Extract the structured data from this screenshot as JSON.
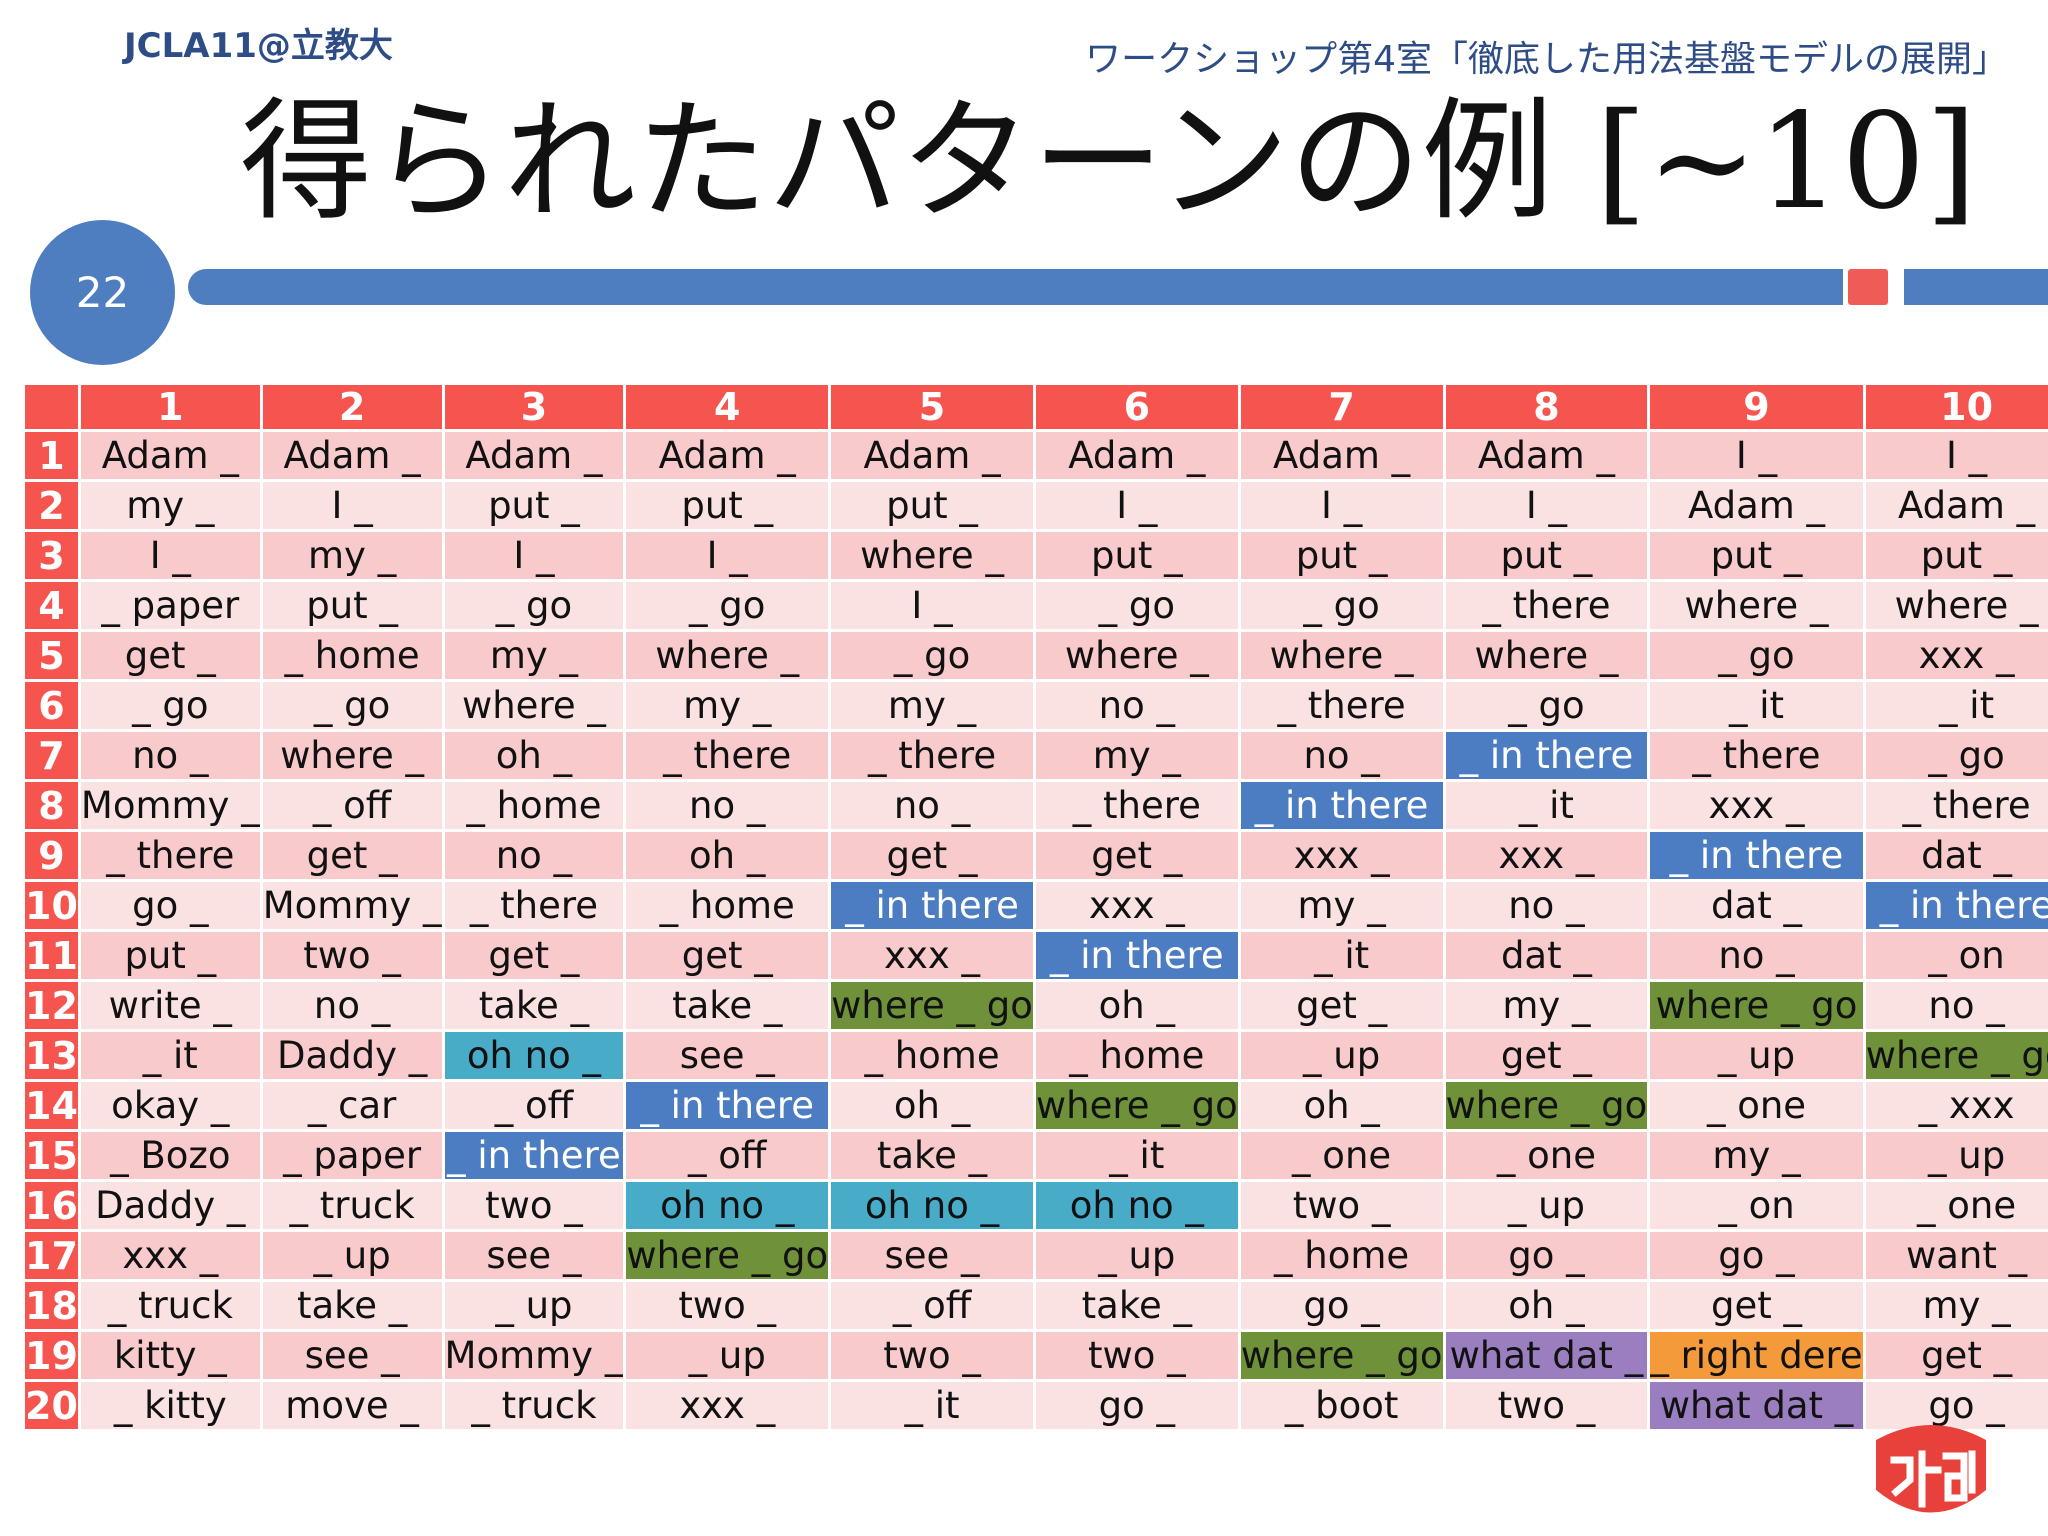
{
  "header": {
    "left": "JCLA11@立教大",
    "right": "ワークショップ第4室「徹底した用法基盤モデルの展開」"
  },
  "title": "得られたパターンの例 [~10]",
  "page_number": "22",
  "colors": {
    "header_red": "#f5544f",
    "row_odd": "#f8cacb",
    "row_even": "#fbe2e2",
    "blue": "#4c7cc1",
    "green": "#6f9139",
    "teal": "#48abc7",
    "orange": "#f59a3a",
    "purple": "#9b7ec0",
    "accent_blue": "#4e7dc0"
  },
  "table": {
    "columns": [
      "1",
      "2",
      "3",
      "4",
      "5",
      "6",
      "7",
      "8",
      "9",
      "10"
    ],
    "rows": [
      {
        "label": "1",
        "cells": [
          {
            "t": "Adam _"
          },
          {
            "t": "Adam _"
          },
          {
            "t": "Adam _"
          },
          {
            "t": "Adam _"
          },
          {
            "t": "Adam _"
          },
          {
            "t": "Adam _"
          },
          {
            "t": "Adam _"
          },
          {
            "t": "Adam _"
          },
          {
            "t": "I _"
          },
          {
            "t": "I _"
          }
        ]
      },
      {
        "label": "2",
        "cells": [
          {
            "t": "my _"
          },
          {
            "t": "I _"
          },
          {
            "t": "put _"
          },
          {
            "t": "put _"
          },
          {
            "t": "put _"
          },
          {
            "t": "I _"
          },
          {
            "t": "I _"
          },
          {
            "t": "I _"
          },
          {
            "t": "Adam _"
          },
          {
            "t": "Adam _"
          }
        ]
      },
      {
        "label": "3",
        "cells": [
          {
            "t": "I _"
          },
          {
            "t": "my _"
          },
          {
            "t": "I _"
          },
          {
            "t": "I _"
          },
          {
            "t": "where _"
          },
          {
            "t": "put _"
          },
          {
            "t": "put _"
          },
          {
            "t": "put _"
          },
          {
            "t": "put _"
          },
          {
            "t": "put _"
          }
        ]
      },
      {
        "label": "4",
        "cells": [
          {
            "t": "_ paper"
          },
          {
            "t": "put _"
          },
          {
            "t": "_ go"
          },
          {
            "t": "_ go"
          },
          {
            "t": "I _"
          },
          {
            "t": "_ go"
          },
          {
            "t": "_ go"
          },
          {
            "t": "_ there"
          },
          {
            "t": "where _"
          },
          {
            "t": "where _"
          }
        ]
      },
      {
        "label": "5",
        "cells": [
          {
            "t": "get _"
          },
          {
            "t": "_ home"
          },
          {
            "t": "my _"
          },
          {
            "t": "where _"
          },
          {
            "t": "_ go"
          },
          {
            "t": "where _"
          },
          {
            "t": "where _"
          },
          {
            "t": "where _"
          },
          {
            "t": "_ go"
          },
          {
            "t": "xxx _"
          }
        ]
      },
      {
        "label": "6",
        "cells": [
          {
            "t": "_ go"
          },
          {
            "t": "_ go"
          },
          {
            "t": "where _"
          },
          {
            "t": "my _"
          },
          {
            "t": "my _"
          },
          {
            "t": "no _"
          },
          {
            "t": "_ there"
          },
          {
            "t": "_ go"
          },
          {
            "t": "_ it"
          },
          {
            "t": "_ it"
          }
        ]
      },
      {
        "label": "7",
        "cells": [
          {
            "t": "no _"
          },
          {
            "t": "where _"
          },
          {
            "t": "oh _"
          },
          {
            "t": "_ there"
          },
          {
            "t": "_ there"
          },
          {
            "t": "my _"
          },
          {
            "t": "no _"
          },
          {
            "t": "_ in there",
            "c": "blue"
          },
          {
            "t": "_ there"
          },
          {
            "t": "_ go"
          }
        ]
      },
      {
        "label": "8",
        "cells": [
          {
            "t": "Mommy _"
          },
          {
            "t": "_ off"
          },
          {
            "t": "_ home"
          },
          {
            "t": "no _"
          },
          {
            "t": "no _"
          },
          {
            "t": "_ there"
          },
          {
            "t": "_ in there",
            "c": "blue"
          },
          {
            "t": "_ it"
          },
          {
            "t": "xxx _"
          },
          {
            "t": "_ there"
          }
        ]
      },
      {
        "label": "9",
        "cells": [
          {
            "t": "_ there"
          },
          {
            "t": "get _"
          },
          {
            "t": "no _"
          },
          {
            "t": "oh _"
          },
          {
            "t": "get _"
          },
          {
            "t": "get _"
          },
          {
            "t": "xxx _"
          },
          {
            "t": "xxx _"
          },
          {
            "t": "_ in there",
            "c": "blue"
          },
          {
            "t": "dat _"
          }
        ]
      },
      {
        "label": "10",
        "cells": [
          {
            "t": "go _"
          },
          {
            "t": "Mommy _"
          },
          {
            "t": "_ there"
          },
          {
            "t": "_ home"
          },
          {
            "t": "_ in there",
            "c": "blue"
          },
          {
            "t": "xxx _"
          },
          {
            "t": "my _"
          },
          {
            "t": "no _"
          },
          {
            "t": "dat _"
          },
          {
            "t": "_ in there",
            "c": "blue"
          }
        ]
      },
      {
        "label": "11",
        "cells": [
          {
            "t": "put _"
          },
          {
            "t": "two _"
          },
          {
            "t": "get _"
          },
          {
            "t": "get _"
          },
          {
            "t": "xxx _"
          },
          {
            "t": "_ in there",
            "c": "blue"
          },
          {
            "t": "_ it"
          },
          {
            "t": "dat _"
          },
          {
            "t": "no _"
          },
          {
            "t": "_ on"
          }
        ]
      },
      {
        "label": "12",
        "cells": [
          {
            "t": "write _"
          },
          {
            "t": "no _"
          },
          {
            "t": "take _"
          },
          {
            "t": "take _"
          },
          {
            "t": "where _ go",
            "c": "green"
          },
          {
            "t": "oh _"
          },
          {
            "t": "get _"
          },
          {
            "t": "my _"
          },
          {
            "t": "where _ go",
            "c": "green"
          },
          {
            "t": "no _"
          }
        ]
      },
      {
        "label": "13",
        "cells": [
          {
            "t": "_ it"
          },
          {
            "t": "Daddy _"
          },
          {
            "t": "oh no _",
            "c": "teal"
          },
          {
            "t": "see _"
          },
          {
            "t": "_ home"
          },
          {
            "t": "_ home"
          },
          {
            "t": "_ up"
          },
          {
            "t": "get _"
          },
          {
            "t": "_ up"
          },
          {
            "t": "where _ go",
            "c": "green"
          }
        ]
      },
      {
        "label": "14",
        "cells": [
          {
            "t": "okay _"
          },
          {
            "t": "_ car"
          },
          {
            "t": "_ off"
          },
          {
            "t": "_ in there",
            "c": "blue"
          },
          {
            "t": "oh _"
          },
          {
            "t": "where _ go",
            "c": "green"
          },
          {
            "t": "oh _"
          },
          {
            "t": "where _ go",
            "c": "green"
          },
          {
            "t": "_ one"
          },
          {
            "t": "_ xxx"
          }
        ]
      },
      {
        "label": "15",
        "cells": [
          {
            "t": "_ Bozo"
          },
          {
            "t": "_ paper"
          },
          {
            "t": "_ in there",
            "c": "blue"
          },
          {
            "t": "_ off"
          },
          {
            "t": "take _"
          },
          {
            "t": "_ it"
          },
          {
            "t": "_ one"
          },
          {
            "t": "_ one"
          },
          {
            "t": "my _"
          },
          {
            "t": "_ up"
          }
        ]
      },
      {
        "label": "16",
        "cells": [
          {
            "t": "Daddy _"
          },
          {
            "t": "_ truck"
          },
          {
            "t": "two _"
          },
          {
            "t": "oh no _",
            "c": "teal"
          },
          {
            "t": "oh no _",
            "c": "teal"
          },
          {
            "t": "oh no _",
            "c": "teal"
          },
          {
            "t": "two _"
          },
          {
            "t": "_ up"
          },
          {
            "t": "_ on"
          },
          {
            "t": "_ one"
          }
        ]
      },
      {
        "label": "17",
        "cells": [
          {
            "t": "xxx _"
          },
          {
            "t": "_ up"
          },
          {
            "t": "see _"
          },
          {
            "t": "where _ go",
            "c": "green"
          },
          {
            "t": "see _"
          },
          {
            "t": "_ up"
          },
          {
            "t": "_ home"
          },
          {
            "t": "go _"
          },
          {
            "t": "go _"
          },
          {
            "t": "want _"
          }
        ]
      },
      {
        "label": "18",
        "cells": [
          {
            "t": "_ truck"
          },
          {
            "t": "take _"
          },
          {
            "t": "_ up"
          },
          {
            "t": "two _"
          },
          {
            "t": "_ off"
          },
          {
            "t": "take _"
          },
          {
            "t": "go _"
          },
          {
            "t": "oh _"
          },
          {
            "t": "get _"
          },
          {
            "t": "my _"
          }
        ]
      },
      {
        "label": "19",
        "cells": [
          {
            "t": "kitty _"
          },
          {
            "t": "see _"
          },
          {
            "t": "Mommy _"
          },
          {
            "t": "_ up"
          },
          {
            "t": "two _"
          },
          {
            "t": "two _"
          },
          {
            "t": "where _ go",
            "c": "green"
          },
          {
            "t": "what dat _",
            "c": "purple"
          },
          {
            "t": "_ right dere",
            "c": "orange"
          },
          {
            "t": "get _"
          }
        ]
      },
      {
        "label": "20",
        "cells": [
          {
            "t": "_ kitty"
          },
          {
            "t": "move _"
          },
          {
            "t": "_ truck"
          },
          {
            "t": "xxx _"
          },
          {
            "t": "_ it"
          },
          {
            "t": "go _"
          },
          {
            "t": "_ boot"
          },
          {
            "t": "two _"
          },
          {
            "t": "what dat _",
            "c": "purple"
          },
          {
            "t": "go _"
          }
        ]
      }
    ]
  },
  "logo_icon": "university-logo-icon"
}
